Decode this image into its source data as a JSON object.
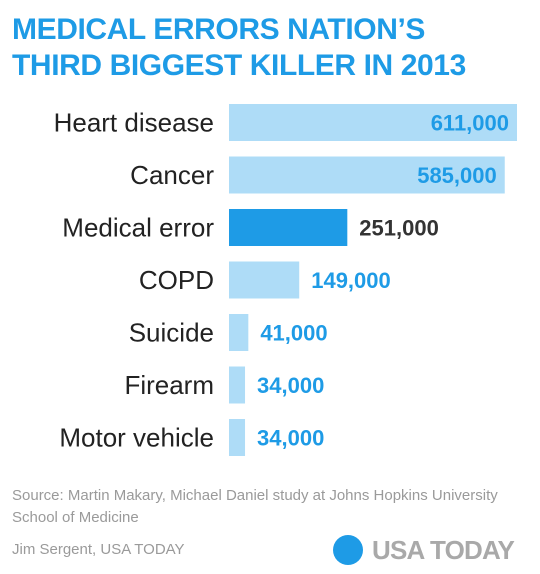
{
  "header": {
    "title_line1": "MEDICAL ERRORS NATION’S",
    "title_line2": "THIRD BIGGEST KILLER IN 2013"
  },
  "colors": {
    "accent": "#1e9be6",
    "bar_default": "#aedcf7",
    "bar_highlight": "#1e9be6",
    "highlight_value_text": "#333333",
    "label_text": "#222222",
    "muted_text": "#9a9a9a"
  },
  "chart_data": {
    "type": "bar",
    "orientation": "horizontal",
    "title": "MEDICAL ERRORS NATION’S THIRD BIGGEST KILLER IN 2013",
    "categories": [
      "Heart disease",
      "Cancer",
      "Medical error",
      "COPD",
      "Suicide",
      "Firearm",
      "Motor vehicle"
    ],
    "values": [
      611000,
      585000,
      251000,
      149000,
      41000,
      34000,
      34000
    ],
    "value_labels": [
      "611,000",
      "585,000",
      "251,000",
      "149,000",
      "41,000",
      "34,000",
      "34,000"
    ],
    "highlight_category": "Medical error",
    "xlim": [
      0,
      611000
    ],
    "grid": false,
    "legend": "none"
  },
  "footer": {
    "source": "Source: Martin Makary, Michael Daniel study at Johns Hopkins University School of Medicine",
    "credit": "Jim Sergent, USA TODAY",
    "logo_text": "USA TODAY"
  }
}
